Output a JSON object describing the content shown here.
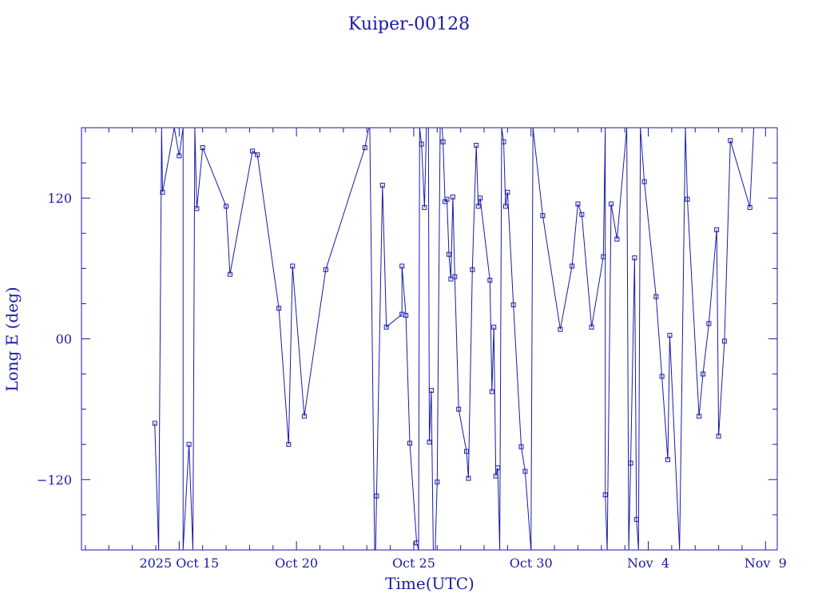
{
  "chart_data": {
    "type": "line",
    "title": "Kuiper-00128",
    "xlabel": "Time(UTC)",
    "ylabel": "Long E (deg)",
    "xlim": [
      "2025-10-10T20:00",
      "2025-11-09T12:00"
    ],
    "ylim": [
      -180,
      180
    ],
    "x_ticks": [
      {
        "x": "2025-10-15",
        "label": "2025 Oct 15"
      },
      {
        "x": "2025-10-20",
        "label": "Oct 20"
      },
      {
        "x": "2025-10-25",
        "label": "Oct 25"
      },
      {
        "x": "2025-10-30",
        "label": "Oct 30"
      },
      {
        "x": "2025-11-04",
        "label": "Nov  4"
      },
      {
        "x": "2025-11-09",
        "label": "Nov  9"
      }
    ],
    "y_ticks": [
      {
        "y": 120,
        "label": "120"
      },
      {
        "y": 0,
        "label": "00"
      },
      {
        "y": -120,
        "label": "−120"
      }
    ],
    "grid": false,
    "legend": "none",
    "color": "#1a1aa6",
    "series": [
      {
        "points": [
          {
            "x": "2025-10-13T23:00",
            "y": -72
          },
          {
            "x": "2025-10-14T03:00",
            "y": -180
          },
          {
            "x": "2025-10-14T06:00",
            "y": 180
          },
          {
            "x": "2025-10-14T07:00",
            "y": 125
          },
          {
            "x": "2025-10-14T19:00",
            "y": 180
          },
          {
            "x": "2025-10-15T00:00",
            "y": 156
          },
          {
            "x": "2025-10-15T04:00",
            "y": 180
          },
          {
            "x": "2025-10-15T04:00",
            "y": -180
          },
          {
            "x": "2025-10-15T10:00",
            "y": -90
          },
          {
            "x": "2025-10-15T14:00",
            "y": -180
          },
          {
            "x": "2025-10-15T16:00",
            "y": 180
          },
          {
            "x": "2025-10-15T18:00",
            "y": 111
          },
          {
            "x": "2025-10-16T00:00",
            "y": 163
          },
          {
            "x": "2025-10-17T00:00",
            "y": 113
          },
          {
            "x": "2025-10-17T04:00",
            "y": 55
          },
          {
            "x": "2025-10-18T03:00",
            "y": 160
          },
          {
            "x": "2025-10-18T08:00",
            "y": 157
          },
          {
            "x": "2025-10-19T06:00",
            "y": 26
          },
          {
            "x": "2025-10-19T16:00",
            "y": -90
          },
          {
            "x": "2025-10-19T20:00",
            "y": 62
          },
          {
            "x": "2025-10-20T08:00",
            "y": -66
          },
          {
            "x": "2025-10-21T06:00",
            "y": 59
          },
          {
            "x": "2025-10-22T22:00",
            "y": 163
          },
          {
            "x": "2025-10-23T02:00",
            "y": 180
          },
          {
            "x": "2025-10-23T03:00",
            "y": 180
          },
          {
            "x": "2025-10-23T08:00",
            "y": -180
          },
          {
            "x": "2025-10-23T09:00",
            "y": -180
          },
          {
            "x": "2025-10-23T10:00",
            "y": -134
          },
          {
            "x": "2025-10-23T16:00",
            "y": 131
          },
          {
            "x": "2025-10-23T20:00",
            "y": 10
          },
          {
            "x": "2025-10-24T12:00",
            "y": 21
          },
          {
            "x": "2025-10-24T12:00",
            "y": 62
          },
          {
            "x": "2025-10-24T16:00",
            "y": 20
          },
          {
            "x": "2025-10-24T20:00",
            "y": -89
          },
          {
            "x": "2025-10-25T03:00",
            "y": -174
          },
          {
            "x": "2025-10-25T05:00",
            "y": -180
          },
          {
            "x": "2025-10-25T06:00",
            "y": 180
          },
          {
            "x": "2025-10-25T08:00",
            "y": 166
          },
          {
            "x": "2025-10-25T11:00",
            "y": 112
          },
          {
            "x": "2025-10-25T13:00",
            "y": 180
          },
          {
            "x": "2025-10-25T15:00",
            "y": 180
          },
          {
            "x": "2025-10-25T16:00",
            "y": -88
          },
          {
            "x": "2025-10-25T18:00",
            "y": -44
          },
          {
            "x": "2025-10-25T20:00",
            "y": -180
          },
          {
            "x": "2025-10-25T22:00",
            "y": -180
          },
          {
            "x": "2025-10-26T00:00",
            "y": -122
          },
          {
            "x": "2025-10-26T03:00",
            "y": 180
          },
          {
            "x": "2025-10-26T05:00",
            "y": 180
          },
          {
            "x": "2025-10-26T06:00",
            "y": 168
          },
          {
            "x": "2025-10-26T08:00",
            "y": 117
          },
          {
            "x": "2025-10-26T10:00",
            "y": 119
          },
          {
            "x": "2025-10-26T12:00",
            "y": 72
          },
          {
            "x": "2025-10-26T14:00",
            "y": 51
          },
          {
            "x": "2025-10-26T16:00",
            "y": 121
          },
          {
            "x": "2025-10-26T18:00",
            "y": 53
          },
          {
            "x": "2025-10-26T22:00",
            "y": -60
          },
          {
            "x": "2025-10-27T06:00",
            "y": -96
          },
          {
            "x": "2025-10-27T08:00",
            "y": -119
          },
          {
            "x": "2025-10-27T12:00",
            "y": 59
          },
          {
            "x": "2025-10-27T16:00",
            "y": 165
          },
          {
            "x": "2025-10-27T18:00",
            "y": 113
          },
          {
            "x": "2025-10-27T20:00",
            "y": 120
          },
          {
            "x": "2025-10-28T06:00",
            "y": 50
          },
          {
            "x": "2025-10-28T08:00",
            "y": -45
          },
          {
            "x": "2025-10-28T10:00",
            "y": 10
          },
          {
            "x": "2025-10-28T12:00",
            "y": -117
          },
          {
            "x": "2025-10-28T14:00",
            "y": -110
          },
          {
            "x": "2025-10-28T16:00",
            "y": -180
          },
          {
            "x": "2025-10-28T18:00",
            "y": 180
          },
          {
            "x": "2025-10-28T20:00",
            "y": 168
          },
          {
            "x": "2025-10-28T22:00",
            "y": 113
          },
          {
            "x": "2025-10-29T00:00",
            "y": 125
          },
          {
            "x": "2025-10-29T06:00",
            "y": 29
          },
          {
            "x": "2025-10-29T14:00",
            "y": -92
          },
          {
            "x": "2025-10-29T18:00",
            "y": -113
          },
          {
            "x": "2025-10-30T00:00",
            "y": -180
          },
          {
            "x": "2025-10-30T02:00",
            "y": 180
          },
          {
            "x": "2025-10-30T12:00",
            "y": 105
          },
          {
            "x": "2025-10-31T06:00",
            "y": 8
          },
          {
            "x": "2025-10-31T18:00",
            "y": 62
          },
          {
            "x": "2025-11-01T00:00",
            "y": 115
          },
          {
            "x": "2025-11-01T04:00",
            "y": 106
          },
          {
            "x": "2025-11-01T14:00",
            "y": 10
          },
          {
            "x": "2025-11-02T02:00",
            "y": 70
          },
          {
            "x": "2025-11-02T04:00",
            "y": 180
          },
          {
            "x": "2025-11-02T04:00",
            "y": -133
          },
          {
            "x": "2025-11-02T06:00",
            "y": -180
          },
          {
            "x": "2025-11-02T10:00",
            "y": 115
          },
          {
            "x": "2025-11-02T16:00",
            "y": 85
          },
          {
            "x": "2025-11-03T02:00",
            "y": 180
          },
          {
            "x": "2025-11-03T04:00",
            "y": -180
          },
          {
            "x": "2025-11-03T06:00",
            "y": -106
          },
          {
            "x": "2025-11-03T10:00",
            "y": 69
          },
          {
            "x": "2025-11-03T12:00",
            "y": -154
          },
          {
            "x": "2025-11-03T14:00",
            "y": -180
          },
          {
            "x": "2025-11-03T16:00",
            "y": 180
          },
          {
            "x": "2025-11-03T20:00",
            "y": 134
          },
          {
            "x": "2025-11-04T08:00",
            "y": 36
          },
          {
            "x": "2025-11-04T14:00",
            "y": -32
          },
          {
            "x": "2025-11-04T20:00",
            "y": -103
          },
          {
            "x": "2025-11-04T22:00",
            "y": 3
          },
          {
            "x": "2025-11-05T08:00",
            "y": -180
          },
          {
            "x": "2025-11-05T14:00",
            "y": 180
          },
          {
            "x": "2025-11-05T16:00",
            "y": 119
          },
          {
            "x": "2025-11-06T04:00",
            "y": -66
          },
          {
            "x": "2025-11-06T08:00",
            "y": -30
          },
          {
            "x": "2025-11-06T14:00",
            "y": 13
          },
          {
            "x": "2025-11-06T22:00",
            "y": 93
          },
          {
            "x": "2025-11-07T00:00",
            "y": -83
          },
          {
            "x": "2025-11-07T06:00",
            "y": -2
          },
          {
            "x": "2025-11-07T12:00",
            "y": 169
          },
          {
            "x": "2025-11-08T08:00",
            "y": 112
          },
          {
            "x": "2025-11-08T12:00",
            "y": 180
          },
          {
            "x": "2025-11-08T14:00",
            "y": 180
          },
          {
            "x": "2025-11-09T08:00",
            "y": 180
          },
          {
            "x": "2025-11-09T10:00",
            "y": 180
          }
        ]
      }
    ]
  }
}
